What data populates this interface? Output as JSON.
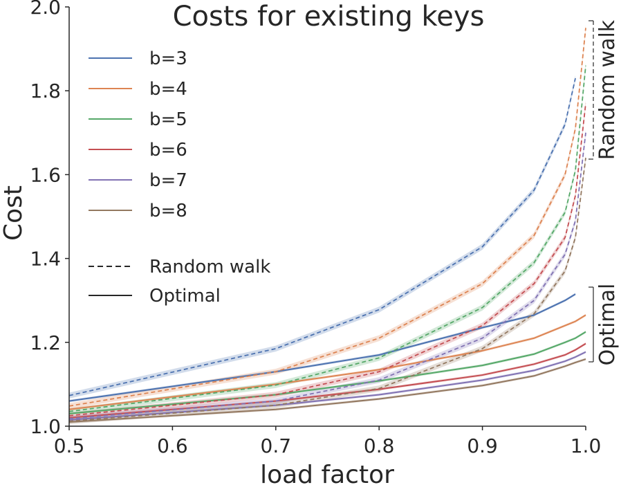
{
  "chart_data": {
    "type": "line",
    "title": "Costs for existing keys",
    "xlabel": "load factor",
    "ylabel": "Cost",
    "xlim": [
      0.5,
      1.0
    ],
    "ylim": [
      1.0,
      2.0
    ],
    "xticks": [
      "0.5",
      "0.6",
      "0.7",
      "0.8",
      "0.9",
      "1.0"
    ],
    "yticks": [
      "1.0",
      "1.2",
      "1.4",
      "1.6",
      "1.8",
      "2.0"
    ],
    "grid": false,
    "legend_position": "upper-left",
    "line_styles": [
      {
        "label": "Random walk",
        "dash": "dashed"
      },
      {
        "label": "Optimal",
        "dash": "solid"
      }
    ],
    "bracket_labels": {
      "random_walk": "Random walk",
      "optimal": "Optimal"
    },
    "series": [
      {
        "name": "b=3",
        "color": "#4c72b0",
        "x_random": [
          0.5,
          0.7,
          0.8,
          0.9,
          0.95,
          0.98,
          0.99
        ],
        "random_walk": [
          1.073,
          1.185,
          1.278,
          1.428,
          1.563,
          1.72,
          1.83
        ],
        "x_optimal": [
          0.5,
          0.7,
          0.8,
          0.9,
          0.95,
          0.98,
          0.99
        ],
        "optimal": [
          1.06,
          1.13,
          1.17,
          1.235,
          1.265,
          1.3,
          1.315
        ]
      },
      {
        "name": "b=4",
        "color": "#dd8452",
        "x_random": [
          0.5,
          0.7,
          0.8,
          0.9,
          0.95,
          0.98,
          0.99,
          1.0
        ],
        "random_walk": [
          1.048,
          1.13,
          1.21,
          1.34,
          1.455,
          1.6,
          1.71,
          1.95
        ],
        "x_optimal": [
          0.5,
          0.7,
          0.8,
          0.9,
          0.95,
          0.98,
          0.99,
          1.0
        ],
        "optimal": [
          1.04,
          1.1,
          1.135,
          1.18,
          1.21,
          1.24,
          1.25,
          1.265
        ]
      },
      {
        "name": "b=5",
        "color": "#55a868",
        "x_random": [
          0.5,
          0.7,
          0.8,
          0.9,
          0.95,
          0.98,
          0.99,
          1.0
        ],
        "random_walk": [
          1.035,
          1.098,
          1.163,
          1.283,
          1.39,
          1.51,
          1.61,
          1.86
        ],
        "x_optimal": [
          0.5,
          0.7,
          0.8,
          0.9,
          0.95,
          0.98,
          0.99,
          1.0
        ],
        "optimal": [
          1.03,
          1.075,
          1.108,
          1.145,
          1.172,
          1.2,
          1.21,
          1.225
        ]
      },
      {
        "name": "b=6",
        "color": "#c44e52",
        "x_random": [
          0.5,
          0.7,
          0.8,
          0.9,
          0.95,
          0.98,
          0.99,
          1.0
        ],
        "random_walk": [
          1.025,
          1.075,
          1.13,
          1.24,
          1.34,
          1.45,
          1.55,
          1.77
        ],
        "x_optimal": [
          0.5,
          0.7,
          0.8,
          0.9,
          0.95,
          0.98,
          0.99,
          1.0
        ],
        "optimal": [
          1.02,
          1.06,
          1.088,
          1.122,
          1.148,
          1.17,
          1.182,
          1.197
        ]
      },
      {
        "name": "b=7",
        "color": "#8172b3",
        "x_random": [
          0.5,
          0.7,
          0.8,
          0.9,
          0.95,
          0.98,
          0.99,
          1.0
        ],
        "random_walk": [
          1.018,
          1.06,
          1.11,
          1.21,
          1.3,
          1.41,
          1.49,
          1.7
        ],
        "x_optimal": [
          0.5,
          0.7,
          0.8,
          0.9,
          0.95,
          0.98,
          0.99,
          1.0
        ],
        "optimal": [
          1.015,
          1.05,
          1.075,
          1.11,
          1.133,
          1.155,
          1.165,
          1.177
        ]
      },
      {
        "name": "b=8",
        "color": "#937860",
        "x_random": [
          0.5,
          0.7,
          0.8,
          0.9,
          0.95,
          0.98,
          0.99,
          1.0
        ],
        "random_walk": [
          1.012,
          1.05,
          1.09,
          1.185,
          1.268,
          1.37,
          1.45,
          1.64
        ],
        "x_optimal": [
          0.5,
          0.7,
          0.8,
          0.9,
          0.95,
          0.98,
          0.99,
          1.0
        ],
        "optimal": [
          1.01,
          1.04,
          1.065,
          1.097,
          1.12,
          1.143,
          1.152,
          1.16
        ]
      }
    ]
  }
}
